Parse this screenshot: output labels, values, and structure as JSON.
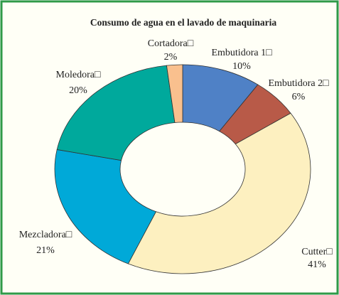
{
  "chart_data": {
    "type": "donut",
    "title": "Consumo de agua en el lavado de maquinaria",
    "categories": [
      "Embutidora 1□",
      "Embutidora 2□",
      "Cutter□",
      "Mezcladora□",
      "Moledora□",
      "Cortadora□"
    ],
    "values": [
      10,
      6,
      41,
      21,
      20,
      2
    ],
    "value_labels": [
      "10%",
      "6%",
      "41%",
      "21%",
      "20%",
      "2%"
    ],
    "colors": [
      "#4f81c6",
      "#b85a48",
      "#fdf0c0",
      "#00a9d8",
      "#00a99c",
      "#f9c08e"
    ]
  }
}
